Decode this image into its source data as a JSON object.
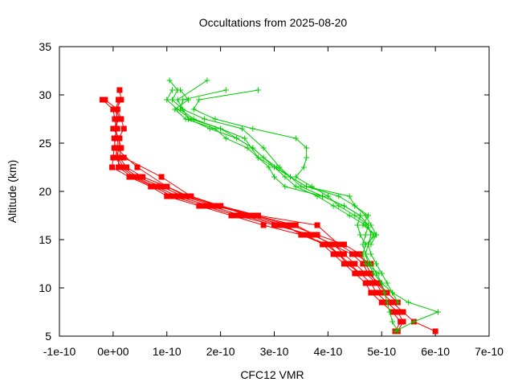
{
  "chart_data": {
    "type": "line",
    "title": "Occultations from 2025-08-20",
    "xlabel": "CFC12 VMR",
    "ylabel": "Altitude (km)",
    "xlim": [
      -1e-10,
      7e-10
    ],
    "ylim": [
      5,
      35
    ],
    "x_ticks": [
      "-1e-10",
      "0e+00",
      "1e-10",
      "2e-10",
      "3e-10",
      "4e-10",
      "5e-10",
      "6e-10",
      "7e-10"
    ],
    "x_tick_values": [
      -1e-10,
      0,
      1e-10,
      2e-10,
      3e-10,
      4e-10,
      5e-10,
      6e-10,
      7e-10
    ],
    "y_ticks": [
      "5",
      "10",
      "15",
      "20",
      "25",
      "30",
      "35"
    ],
    "y_tick_values": [
      5,
      10,
      15,
      20,
      25,
      30,
      35
    ],
    "grid": false,
    "legend": "none",
    "series": [
      {
        "color": "#ff0000",
        "marker": "square",
        "points": [
          [
            5.3e-10,
            5.5
          ],
          [
            5.4e-10,
            6.5
          ],
          [
            5.3e-10,
            7.5
          ],
          [
            5.1e-10,
            8.5
          ],
          [
            4.9e-10,
            9.5
          ],
          [
            4.8e-10,
            10.5
          ],
          [
            4.6e-10,
            11.5
          ],
          [
            4.4e-10,
            12.5
          ],
          [
            4.2e-10,
            13.5
          ],
          [
            4e-10,
            14.5
          ],
          [
            3.5e-10,
            15.5
          ],
          [
            2.8e-10,
            16.5
          ],
          [
            2.2e-10,
            17.5
          ],
          [
            1.6e-10,
            18.5
          ],
          [
            1e-10,
            19.5
          ],
          [
            7e-11,
            20.5
          ],
          [
            3e-11,
            21.5
          ],
          [
            -2e-12,
            22.5
          ],
          [
            0.0,
            23.5
          ],
          [
            2e-12,
            24.5
          ],
          [
            4e-12,
            25.5
          ],
          [
            6e-12,
            26.5
          ],
          [
            3e-12,
            27.5
          ],
          [
            0.0,
            28.5
          ],
          [
            -2e-11,
            29.5
          ]
        ]
      },
      {
        "color": "#ff0000",
        "marker": "square",
        "points": [
          [
            6e-10,
            5.5
          ],
          [
            5.6e-10,
            6.5
          ],
          [
            5.4e-10,
            7.5
          ],
          [
            5.2e-10,
            8.5
          ],
          [
            5e-10,
            9.5
          ],
          [
            4.9e-10,
            10.5
          ],
          [
            4.8e-10,
            11.5
          ],
          [
            4.7e-10,
            12.5
          ],
          [
            4.6e-10,
            13.5
          ],
          [
            4.3e-10,
            14.5
          ],
          [
            3.8e-10,
            15.5
          ],
          [
            3.3e-10,
            16.5
          ],
          [
            2.6e-10,
            17.5
          ],
          [
            1.9e-10,
            18.5
          ],
          [
            1.3e-10,
            19.5
          ],
          [
            9e-11,
            20.5
          ],
          [
            4.5e-11,
            21.5
          ],
          [
            2e-11,
            22.5
          ],
          [
            8e-12,
            23.5
          ],
          [
            1e-11,
            24.5
          ],
          [
            1.2e-11,
            25.5
          ],
          [
            0.0,
            26.5
          ],
          [
            1.2e-11,
            27.5
          ],
          [
            6e-12,
            28.5
          ],
          [
            1.5e-11,
            29.5
          ],
          [
            1.2e-11,
            30.5
          ]
        ]
      },
      {
        "color": "#ff0000",
        "marker": "square",
        "points": [
          [
            5.25e-10,
            5.5
          ],
          [
            5.35e-10,
            6.5
          ],
          [
            5.2e-10,
            7.5
          ],
          [
            5e-10,
            8.5
          ],
          [
            4.8e-10,
            9.5
          ],
          [
            4.7e-10,
            10.5
          ],
          [
            4.5e-10,
            11.5
          ],
          [
            4.3e-10,
            12.5
          ],
          [
            4.1e-10,
            13.5
          ],
          [
            3.9e-10,
            14.5
          ],
          [
            3.6e-10,
            15.5
          ],
          [
            3.1e-10,
            16.5
          ],
          [
            2.4e-10,
            17.5
          ],
          [
            1.8e-10,
            18.5
          ],
          [
            1.2e-10,
            19.5
          ],
          [
            8e-11,
            20.5
          ],
          [
            4e-11,
            21.5
          ],
          [
            1.5e-11,
            22.5
          ],
          [
            5e-12,
            23.5
          ],
          [
            7e-12,
            24.5
          ],
          [
            9e-12,
            25.5
          ],
          [
            4e-12,
            26.5
          ],
          [
            8e-12,
            27.5
          ],
          [
            5e-12,
            28.5
          ],
          [
            1e-11,
            29.5
          ]
        ]
      },
      {
        "color": "#ff0000",
        "marker": "square",
        "points": [
          [
            5.3e-10,
            8.5
          ],
          [
            5.1e-10,
            9.5
          ],
          [
            4.9e-10,
            10.5
          ],
          [
            4.7e-10,
            11.5
          ],
          [
            4.5e-10,
            12.5
          ],
          [
            4.3e-10,
            13.5
          ],
          [
            4.1e-10,
            14.5
          ],
          [
            3.7e-10,
            15.5
          ],
          [
            3e-10,
            16.5
          ],
          [
            2.3e-10,
            17.5
          ],
          [
            1.7e-10,
            18.5
          ],
          [
            1.1e-10,
            19.5
          ],
          [
            7.5e-11,
            20.5
          ],
          [
            3.5e-11,
            21.5
          ],
          [
            1e-11,
            22.5
          ],
          [
            1e-11,
            23.5
          ],
          [
            4e-12,
            24.5
          ],
          [
            2e-12,
            25.5
          ],
          [
            8e-12,
            26.5
          ],
          [
            6e-12,
            27.5
          ],
          [
            8e-12,
            28.5
          ],
          [
            -1.5e-11,
            29.5
          ]
        ]
      },
      {
        "color": "#ff0000",
        "marker": "square",
        "points": [
          [
            5.1e-10,
            9.5
          ],
          [
            4.95e-10,
            10.5
          ],
          [
            4.75e-10,
            11.5
          ],
          [
            4.65e-10,
            12.5
          ],
          [
            4.45e-10,
            13.5
          ],
          [
            4.05e-10,
            14.5
          ],
          [
            3.75e-10,
            15.5
          ],
          [
            3.4e-10,
            16.5
          ],
          [
            2.65e-10,
            17.5
          ],
          [
            1.95e-10,
            18.5
          ],
          [
            1.4e-10,
            19.5
          ],
          [
            1e-10,
            20.5
          ],
          [
            5.5e-11,
            21.5
          ],
          [
            2.5e-11,
            22.5
          ],
          [
            1.2e-11,
            23.5
          ],
          [
            1.5e-11,
            24.5
          ],
          [
            1e-11,
            25.5
          ],
          [
            2e-11,
            26.5
          ],
          [
            1.5e-11,
            27.5
          ],
          [
            8e-12,
            28.5
          ],
          [
            1.2e-11,
            29.5
          ]
        ]
      },
      {
        "color": "#ff0000",
        "marker": "square",
        "points": [
          [
            4.6e-10,
            11.5
          ],
          [
            4.35e-10,
            12.5
          ],
          [
            4.2e-10,
            13.5
          ],
          [
            3.95e-10,
            14.5
          ],
          [
            3.5e-10,
            15.5
          ],
          [
            3.2e-10,
            16.5
          ],
          [
            2.5e-10,
            17.5
          ],
          [
            2e-10,
            18.5
          ],
          [
            1.35e-10,
            19.5
          ],
          [
            1e-10,
            20.5
          ],
          [
            4.5e-11,
            22.5
          ],
          [
            5e-12,
            24.5
          ]
        ]
      },
      {
        "color": "#ff0000",
        "marker": "square",
        "points": [
          [
            4.8e-10,
            12.5
          ],
          [
            4.5e-10,
            13.5
          ],
          [
            4.2e-10,
            14.5
          ],
          [
            3.8e-10,
            16.5
          ],
          [
            2.7e-10,
            17.5
          ],
          [
            2e-10,
            18.5
          ],
          [
            1.45e-10,
            19.5
          ],
          [
            9e-11,
            21.5
          ],
          [
            2e-11,
            23.5
          ]
        ]
      },
      {
        "color": "#00cc00",
        "marker": "plus",
        "points": [
          [
            5.3e-10,
            5.5
          ],
          [
            5.2e-10,
            6.5
          ],
          [
            5.15e-10,
            7.5
          ],
          [
            5.1e-10,
            8.5
          ],
          [
            5.05e-10,
            9.5
          ],
          [
            5e-10,
            10.5
          ],
          [
            4.9e-10,
            11.5
          ],
          [
            4.8e-10,
            12.5
          ],
          [
            4.7e-10,
            13.5
          ],
          [
            4.65e-10,
            14.5
          ],
          [
            4.7e-10,
            15.5
          ],
          [
            4.75e-10,
            16.5
          ],
          [
            4.6e-10,
            17.5
          ],
          [
            4.3e-10,
            18.5
          ],
          [
            3.9e-10,
            19.5
          ],
          [
            3.5e-10,
            20.5
          ],
          [
            3.1e-10,
            22.5
          ],
          [
            2.8e-10,
            24.5
          ],
          [
            2.4e-10,
            26.5
          ],
          [
            1.7e-10,
            27.5
          ],
          [
            1.3e-10,
            28.5
          ],
          [
            1.1e-10,
            29.5
          ],
          [
            1.2e-10,
            30.5
          ],
          [
            1.05e-10,
            31.5
          ]
        ]
      },
      {
        "color": "#00cc00",
        "marker": "plus",
        "points": [
          [
            5.25e-10,
            5.5
          ],
          [
            5.6e-10,
            6.5
          ],
          [
            6.05e-10,
            7.5
          ],
          [
            5.5e-10,
            8.5
          ],
          [
            5.2e-10,
            9.5
          ],
          [
            5.1e-10,
            10.5
          ],
          [
            5e-10,
            11.5
          ],
          [
            4.9e-10,
            12.5
          ],
          [
            4.8e-10,
            13.5
          ],
          [
            4.75e-10,
            14.5
          ],
          [
            4.8e-10,
            15.5
          ],
          [
            4.75e-10,
            16.5
          ],
          [
            4.5e-10,
            17.5
          ],
          [
            4.2e-10,
            18.5
          ],
          [
            4e-10,
            19.5
          ],
          [
            3.7e-10,
            20.5
          ],
          [
            3.4e-10,
            21.5
          ],
          [
            3.55e-10,
            22.5
          ],
          [
            3.6e-10,
            23.5
          ],
          [
            3.6e-10,
            24.5
          ],
          [
            3.4e-10,
            25.5
          ],
          [
            2.6e-10,
            26.5
          ],
          [
            1.9e-10,
            27.5
          ],
          [
            1.5e-10,
            28.5
          ],
          [
            1.6e-10,
            29.5
          ],
          [
            2.7e-10,
            30.5
          ]
        ]
      },
      {
        "color": "#00cc00",
        "marker": "plus",
        "points": [
          [
            5.3e-10,
            8.5
          ],
          [
            5.2e-10,
            9.5
          ],
          [
            5e-10,
            10.5
          ],
          [
            4.85e-10,
            11.5
          ],
          [
            4.75e-10,
            12.5
          ],
          [
            4.7e-10,
            13.5
          ],
          [
            4.75e-10,
            14.5
          ],
          [
            4.85e-10,
            15.5
          ],
          [
            4.7e-10,
            16.5
          ],
          [
            4.4e-10,
            17.5
          ],
          [
            4.1e-10,
            18.5
          ],
          [
            3.8e-10,
            19.5
          ],
          [
            3.4e-10,
            20.5
          ],
          [
            3.2e-10,
            21.5
          ],
          [
            3e-10,
            22.5
          ],
          [
            2.6e-10,
            24.5
          ],
          [
            2.3e-10,
            25.5
          ],
          [
            1.8e-10,
            26.5
          ],
          [
            1.4e-10,
            27.5
          ],
          [
            1.2e-10,
            29.5
          ],
          [
            1.75e-10,
            31.5
          ]
        ]
      },
      {
        "color": "#00cc00",
        "marker": "plus",
        "points": [
          [
            4.95e-10,
            11.5
          ],
          [
            4.7e-10,
            12.5
          ],
          [
            4.65e-10,
            13.5
          ],
          [
            4.7e-10,
            14.5
          ],
          [
            4.9e-10,
            15.5
          ],
          [
            4.8e-10,
            16.5
          ],
          [
            4.7e-10,
            17.5
          ],
          [
            4.5e-10,
            18.5
          ],
          [
            4.2e-10,
            19.5
          ],
          [
            3.6e-10,
            20.5
          ],
          [
            3.3e-10,
            21.5
          ],
          [
            3e-10,
            22.5
          ],
          [
            2.7e-10,
            23.5
          ],
          [
            2.45e-10,
            25.5
          ],
          [
            2e-10,
            26.5
          ],
          [
            1.5e-10,
            27.5
          ],
          [
            1.25e-10,
            28.5
          ],
          [
            1.3e-10,
            29.5
          ],
          [
            2.1e-10,
            30.5
          ]
        ]
      },
      {
        "color": "#00cc00",
        "marker": "plus",
        "points": [
          [
            4.7e-10,
            14.5
          ],
          [
            4.6e-10,
            15.5
          ],
          [
            4.55e-10,
            16.5
          ],
          [
            4.6e-10,
            17.5
          ],
          [
            4.3e-10,
            18.5
          ],
          [
            3.9e-10,
            19.5
          ],
          [
            3.2e-10,
            20.5
          ],
          [
            3e-10,
            21.5
          ],
          [
            2.9e-10,
            22.5
          ],
          [
            2.7e-10,
            23.5
          ],
          [
            2.5e-10,
            24.5
          ],
          [
            2.1e-10,
            25.5
          ],
          [
            1.9e-10,
            26.5
          ],
          [
            1.35e-10,
            27.5
          ],
          [
            1.15e-10,
            28.5
          ],
          [
            1.4e-10,
            29.5
          ],
          [
            1.25e-10,
            30.5
          ]
        ]
      },
      {
        "color": "#00cc00",
        "marker": "plus",
        "points": [
          [
            4.8e-10,
            14.5
          ],
          [
            4.9e-10,
            15.5
          ],
          [
            4.65e-10,
            16.5
          ],
          [
            4.75e-10,
            17.5
          ],
          [
            4.5e-10,
            18.5
          ],
          [
            4.4e-10,
            19.5
          ],
          [
            3.6e-10,
            20.5
          ],
          [
            3.3e-10,
            21.5
          ],
          [
            3.05e-10,
            22.5
          ],
          [
            2.8e-10,
            23.5
          ],
          [
            2.6e-10,
            24.5
          ],
          [
            2e-10,
            26.5
          ],
          [
            1.45e-10,
            27.5
          ],
          [
            1.2e-10,
            28.5
          ],
          [
            1e-10,
            29.5
          ],
          [
            1.1e-10,
            30.5
          ]
        ]
      }
    ]
  }
}
